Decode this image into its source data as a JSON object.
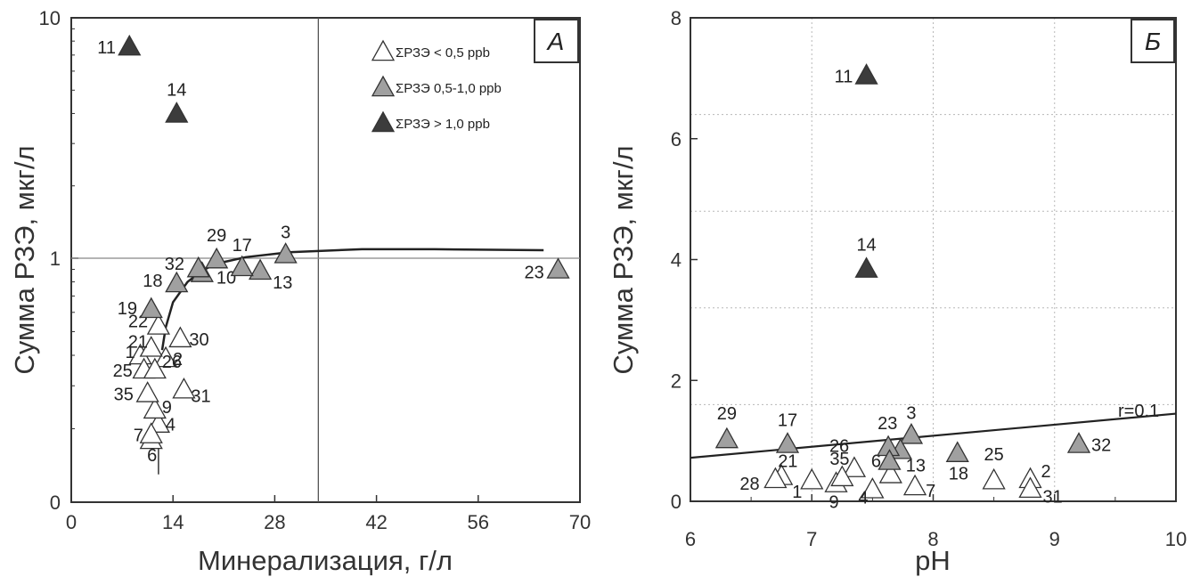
{
  "chart_data": [
    {
      "type": "scatter",
      "panel": "А",
      "xlabel": "Минерализация, г/л",
      "ylabel": "Сумма РЗЭ, мкг/л",
      "xlim": [
        0,
        70
      ],
      "ylim": [
        0,
        10
      ],
      "x_ticks": [
        "0",
        "14",
        "28",
        "42",
        "56",
        "70"
      ],
      "y_ticks": [
        "0",
        "1",
        "10"
      ],
      "y_scale": "log-like",
      "grid": false,
      "legend_position": "top-right",
      "reference_lines": {
        "x": 34,
        "y": 1
      },
      "colors": {
        "low": "#ffffff",
        "mid": "#a0a0a0",
        "high": "#3c3c3c"
      },
      "series": [
        {
          "name": "ΣРЗЭ < 0,5 ppb",
          "class": "low",
          "points": [
            {
              "label": "1",
              "x": 9.5,
              "y": 0.4
            },
            {
              "label": "2",
              "x": 13,
              "y": 0.39
            },
            {
              "label": "4",
              "x": 12,
              "y": 0.21
            },
            {
              "label": "6",
              "x": 11,
              "y": 0.18
            },
            {
              "label": "7",
              "x": 11,
              "y": 0.19
            },
            {
              "label": "9",
              "x": 11.5,
              "y": 0.24
            },
            {
              "label": "21",
              "x": 11,
              "y": 0.43
            },
            {
              "label": "22",
              "x": 12,
              "y": 0.53
            },
            {
              "label": "25",
              "x": 10,
              "y": 0.35
            },
            {
              "label": "26",
              "x": 11.5,
              "y": 0.35
            },
            {
              "label": "30",
              "x": 15,
              "y": 0.47
            },
            {
              "label": "31",
              "x": 15.5,
              "y": 0.29
            },
            {
              "label": "35",
              "x": 10.5,
              "y": 0.28
            }
          ]
        },
        {
          "name": "ΣРЗЭ 0,5-1,0 ppb",
          "class": "mid",
          "points": [
            {
              "label": "3",
              "x": 29.5,
              "y": 1.04
            },
            {
              "label": "10",
              "x": 18,
              "y": 0.87
            },
            {
              "label": "13",
              "x": 26,
              "y": 0.89
            },
            {
              "label": "17",
              "x": 23.5,
              "y": 0.92
            },
            {
              "label": "18",
              "x": 14.5,
              "y": 0.79
            },
            {
              "label": "19",
              "x": 11,
              "y": 0.62
            },
            {
              "label": "23",
              "x": 67,
              "y": 0.9
            },
            {
              "label": "29",
              "x": 20,
              "y": 0.99
            },
            {
              "label": "32",
              "x": 17.5,
              "y": 0.91
            }
          ]
        },
        {
          "name": "ΣРЗЭ > 1,0 ppb",
          "class": "high",
          "points": [
            {
              "label": "11",
              "x": 8,
              "y": 7.6
            },
            {
              "label": "14",
              "x": 14.5,
              "y": 4
            }
          ]
        }
      ],
      "trend_curve": {
        "x": [
          12.5,
          13,
          14,
          16,
          18,
          20,
          24,
          30,
          40,
          50,
          65
        ],
        "y": [
          0.42,
          0.52,
          0.66,
          0.8,
          0.89,
          0.95,
          1.01,
          1.06,
          1.09,
          1.09,
          1.08
        ]
      }
    },
    {
      "type": "scatter",
      "panel": "Б",
      "xlabel": "pH",
      "ylabel": "Сумма РЗЭ, мкг/л",
      "xlim": [
        6,
        10
      ],
      "ylim": [
        0,
        8
      ],
      "x_ticks": [
        "6",
        "7",
        "8",
        "9",
        "10"
      ],
      "y_ticks": [
        "0",
        "2",
        "4",
        "6",
        "8"
      ],
      "grid": true,
      "trend_label": "r=0.1",
      "trend_line": {
        "x": [
          6,
          10
        ],
        "y": [
          0.72,
          1.45
        ]
      },
      "series": [
        {
          "name": "ΣРЗЭ < 0,5 ppb",
          "class": "low",
          "points": [
            {
              "label": "1",
              "x": 7,
              "y": 0.35
            },
            {
              "label": "2",
              "x": 8.8,
              "y": 0.37
            },
            {
              "label": "4",
              "x": 7.5,
              "y": 0.2
            },
            {
              "label": "6",
              "x": 7.65,
              "y": 0.45
            },
            {
              "label": "7",
              "x": 7.85,
              "y": 0.25
            },
            {
              "label": "9",
              "x": 7.2,
              "y": 0.3
            },
            {
              "label": "21",
              "x": 6.75,
              "y": 0.42
            },
            {
              "label": "25",
              "x": 8.5,
              "y": 0.35
            },
            {
              "label": "26",
              "x": 7.35,
              "y": 0.55
            },
            {
              "label": "28",
              "x": 6.7,
              "y": 0.37
            },
            {
              "label": "31",
              "x": 8.8,
              "y": 0.21
            },
            {
              "label": "35",
              "x": 7.25,
              "y": 0.4
            }
          ]
        },
        {
          "name": "ΣРЗЭ 0,5-1,0 ppb",
          "class": "mid",
          "points": [
            {
              "label": "3",
              "x": 7.82,
              "y": 1.1
            },
            {
              "label": "13",
              "x": 7.73,
              "y": 0.85
            },
            {
              "label": "17",
              "x": 6.8,
              "y": 0.95
            },
            {
              "label": "18",
              "x": 8.2,
              "y": 0.8
            },
            {
              "label": "23",
              "x": 7.63,
              "y": 0.9
            },
            {
              "label": "29",
              "x": 6.3,
              "y": 1.03
            },
            {
              "label": "32",
              "x": 9.2,
              "y": 0.95
            },
            {
              "label": "6b",
              "x": 7.64,
              "y": 0.67
            }
          ]
        },
        {
          "name": "ΣРЗЭ > 1,0 ppb",
          "class": "high",
          "points": [
            {
              "label": "11",
              "x": 7.45,
              "y": 7.05
            },
            {
              "label": "14",
              "x": 7.45,
              "y": 3.85
            }
          ]
        }
      ]
    }
  ]
}
